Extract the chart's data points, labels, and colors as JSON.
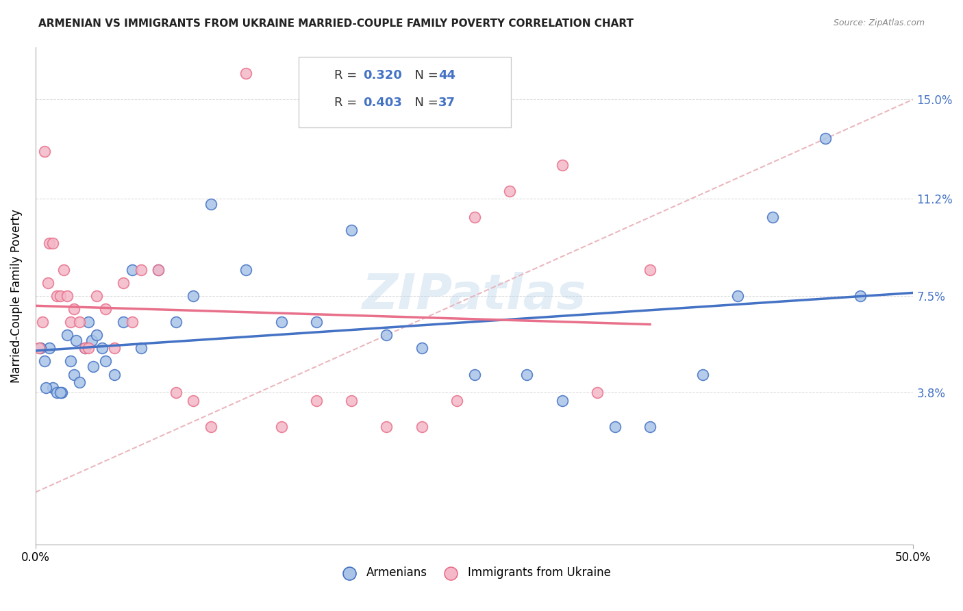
{
  "title": "ARMENIAN VS IMMIGRANTS FROM UKRAINE MARRIED-COUPLE FAMILY POVERTY CORRELATION CHART",
  "source": "Source: ZipAtlas.com",
  "ylabel": "Married-Couple Family Poverty",
  "xlim": [
    0,
    50
  ],
  "ylim": [
    -2,
    17
  ],
  "xtick_labels": [
    "0.0%",
    "50.0%"
  ],
  "ytick_labels": [
    "3.8%",
    "7.5%",
    "11.2%",
    "15.0%"
  ],
  "ytick_values": [
    3.8,
    7.5,
    11.2,
    15.0
  ],
  "watermark": "ZIPatlas",
  "legend_r_armenian": "0.320",
  "legend_n_armenian": "44",
  "legend_r_ukraine": "0.403",
  "legend_n_ukraine": "37",
  "armenian_color": "#aac4e8",
  "ukraine_color": "#f4b8c8",
  "armenian_line_color": "#4472c4",
  "ukraine_line_color": "#e8708a",
  "diagonal_color": "#e8b0b8",
  "background_color": "#ffffff",
  "armenians_x": [
    0.5,
    0.8,
    1.0,
    1.2,
    1.5,
    1.8,
    2.0,
    2.2,
    2.5,
    2.8,
    3.0,
    3.2,
    3.5,
    3.8,
    4.0,
    4.5,
    5.0,
    5.5,
    6.0,
    7.0,
    8.0,
    9.0,
    10.0,
    12.0,
    14.0,
    16.0,
    18.0,
    20.0,
    22.0,
    25.0,
    28.0,
    30.0,
    33.0,
    35.0,
    38.0,
    40.0,
    42.0,
    45.0,
    47.0,
    0.3,
    0.6,
    1.4,
    2.3,
    3.3
  ],
  "armenians_y": [
    5.0,
    5.5,
    4.0,
    3.8,
    3.8,
    6.0,
    5.0,
    4.5,
    4.2,
    5.5,
    6.5,
    5.8,
    6.0,
    5.5,
    5.0,
    4.5,
    6.5,
    8.5,
    5.5,
    8.5,
    6.5,
    7.5,
    11.0,
    8.5,
    6.5,
    6.5,
    10.0,
    6.0,
    5.5,
    4.5,
    4.5,
    3.5,
    2.5,
    2.5,
    4.5,
    7.5,
    10.5,
    13.5,
    7.5,
    5.5,
    4.0,
    3.8,
    5.8,
    4.8
  ],
  "ukraine_x": [
    0.2,
    0.4,
    0.5,
    0.7,
    0.8,
    1.0,
    1.2,
    1.4,
    1.6,
    1.8,
    2.0,
    2.2,
    2.5,
    2.8,
    3.0,
    3.5,
    4.0,
    4.5,
    5.0,
    5.5,
    6.0,
    7.0,
    8.0,
    9.0,
    10.0,
    12.0,
    14.0,
    16.0,
    18.0,
    20.0,
    22.0,
    24.0,
    25.0,
    27.0,
    30.0,
    32.0,
    35.0
  ],
  "ukraine_y": [
    5.5,
    6.5,
    13.0,
    8.0,
    9.5,
    9.5,
    7.5,
    7.5,
    8.5,
    7.5,
    6.5,
    7.0,
    6.5,
    5.5,
    5.5,
    7.5,
    7.0,
    5.5,
    8.0,
    6.5,
    8.5,
    8.5,
    3.8,
    3.5,
    2.5,
    16.0,
    2.5,
    3.5,
    3.5,
    2.5,
    2.5,
    3.5,
    10.5,
    11.5,
    12.5,
    3.8,
    8.5
  ]
}
